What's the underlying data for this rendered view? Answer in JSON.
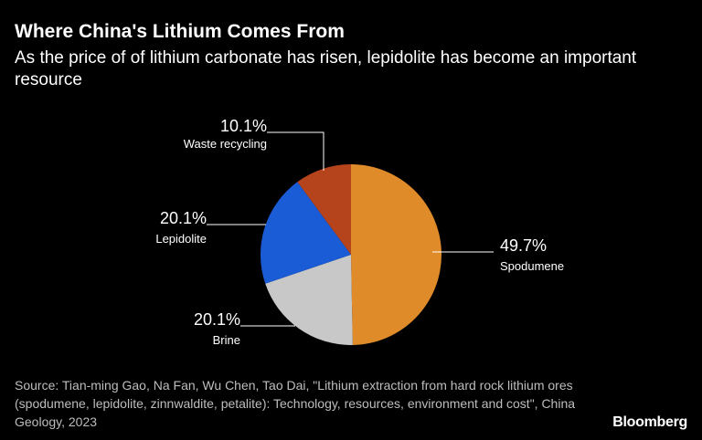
{
  "header": {
    "title": "Where China's Lithium Comes From",
    "subtitle": "As the price of of lithium carbonate has risen, lepidolite has become an important resource"
  },
  "chart_data": {
    "type": "pie",
    "title": "Where China's Lithium Comes From",
    "subtitle": "As the price of of lithium carbonate has risen, lepidolite has become an important resource",
    "slices": [
      {
        "label": "Spodumene",
        "value": 49.7,
        "display": "49.7%",
        "color": "#e08b2a"
      },
      {
        "label": "Brine",
        "value": 20.1,
        "display": "20.1%",
        "color": "#c8c8c8"
      },
      {
        "label": "Lepidolite",
        "value": 20.1,
        "display": "20.1%",
        "color": "#1a5bd6"
      },
      {
        "label": "Waste recycling",
        "value": 10.1,
        "display": "10.1%",
        "color": "#b5431c"
      }
    ],
    "start": "12 o'clock",
    "direction": "clockwise"
  },
  "footer": {
    "source": "Source: Tian-ming Gao, Na Fan, Wu Chen, Tao Dai, \"Lithium extraction from hard rock lithium ores (spodumene, lepidolite, zinnwaldite, petalite): Technology, resources, environment and cost\", China Geology, 2023",
    "brand": "Bloomberg"
  }
}
